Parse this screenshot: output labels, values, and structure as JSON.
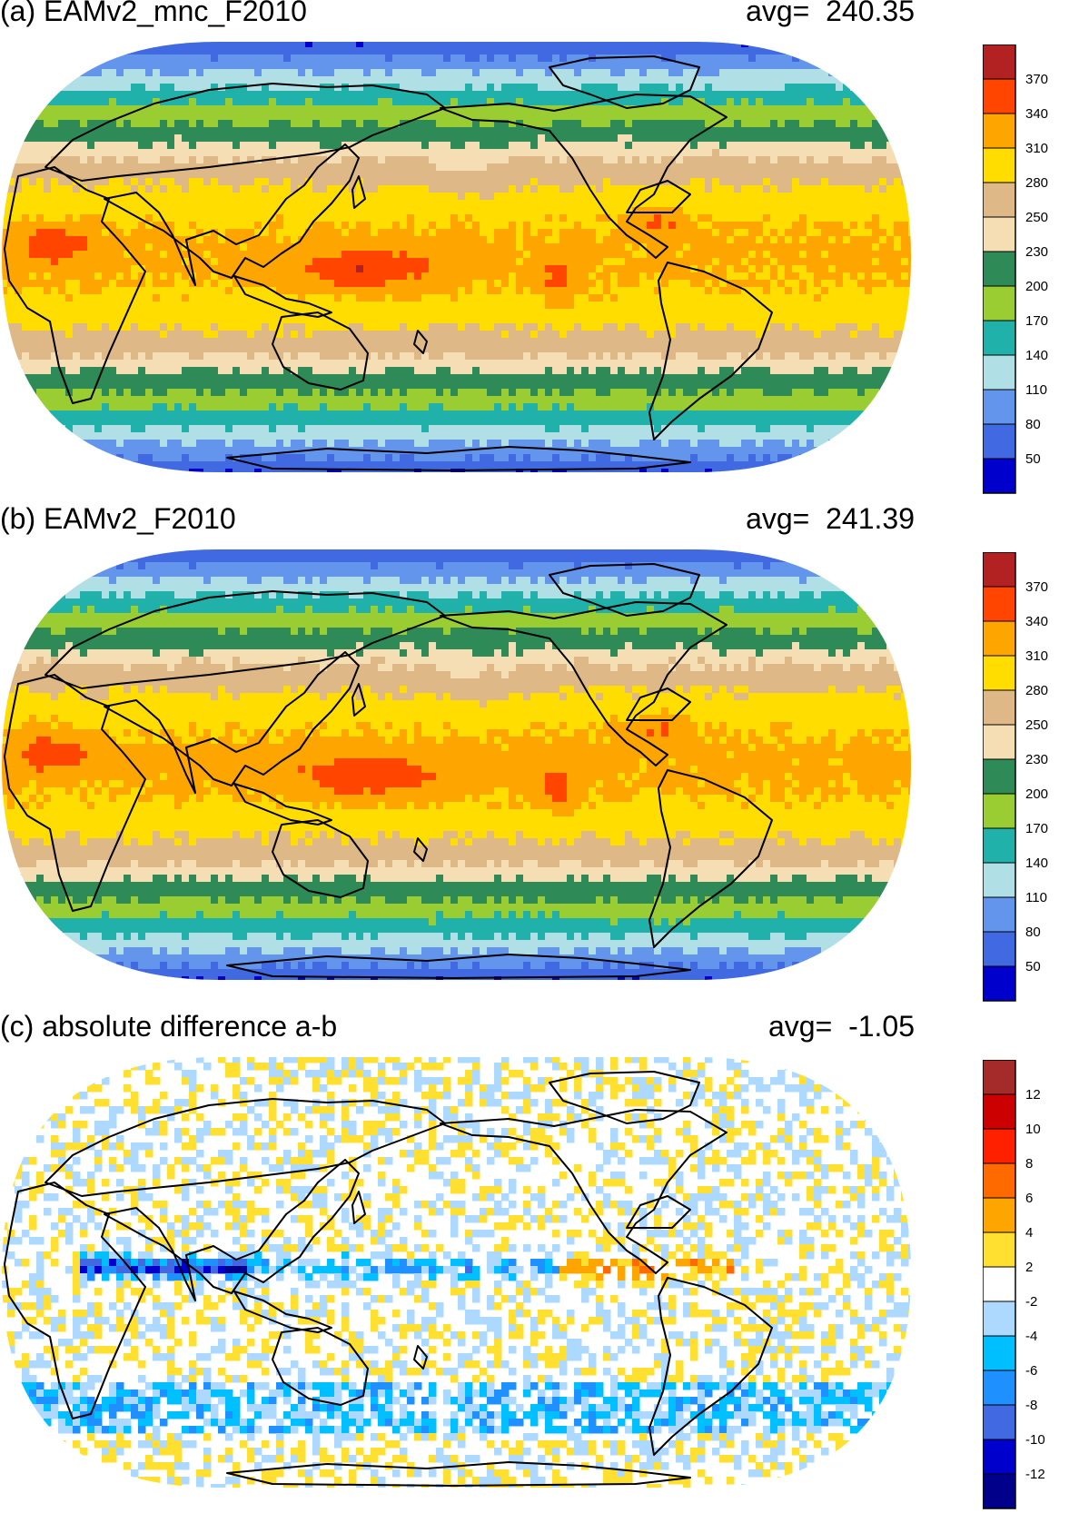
{
  "panels": [
    {
      "title": "(a) EAMv2_mnc_F2010",
      "avg_label": "avg=",
      "avg_value": "240.35",
      "colormap": "full",
      "colorbar": {
        "tick_labels": [
          "370",
          "340",
          "310",
          "280",
          "250",
          "230",
          "200",
          "170",
          "140",
          "110",
          "80",
          "50"
        ],
        "colors": [
          "#b22222",
          "#ff4500",
          "#ffa500",
          "#ffdd00",
          "#deb887",
          "#f5deb3",
          "#2e8b57",
          "#9acd32",
          "#20b2aa",
          "#b0e0e6",
          "#6495ed",
          "#4169e1",
          "#0000cd"
        ]
      }
    },
    {
      "title": "(b) EAMv2_F2010",
      "avg_label": "avg=",
      "avg_value": "241.39",
      "colormap": "full",
      "colorbar": {
        "tick_labels": [
          "370",
          "340",
          "310",
          "280",
          "250",
          "230",
          "200",
          "170",
          "140",
          "110",
          "80",
          "50"
        ],
        "colors": [
          "#b22222",
          "#ff4500",
          "#ffa500",
          "#ffdd00",
          "#deb887",
          "#f5deb3",
          "#2e8b57",
          "#9acd32",
          "#20b2aa",
          "#b0e0e6",
          "#6495ed",
          "#4169e1",
          "#0000cd"
        ]
      }
    },
    {
      "title": "(c) absolute difference a-b",
      "avg_label": "avg=",
      "avg_value": "-1.05",
      "colormap": "diff",
      "colorbar": {
        "tick_labels": [
          "12",
          "10",
          "8",
          "6",
          "4",
          "2",
          "-2",
          "-4",
          "-6",
          "-8",
          "-10",
          "-12"
        ],
        "colors": [
          "#a52a2a",
          "#cc0000",
          "#ff2000",
          "#ff6a00",
          "#ffa500",
          "#ffe030",
          "#ffffff",
          "#add8ff",
          "#00bfff",
          "#1e90ff",
          "#4169e1",
          "#0000cd",
          "#00008b"
        ]
      }
    }
  ],
  "map_colors": {
    "coastline": "#000000",
    "outline_fill": "#ffffff"
  }
}
